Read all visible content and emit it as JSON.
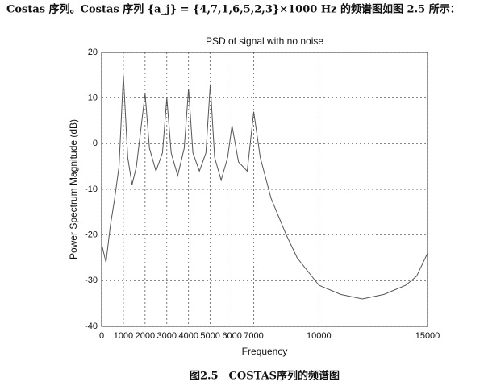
{
  "intro": "Costas 序列。Costas 序列 {a_j} = {4,7,1,6,5,2,3}×1000 Hz 的频谱图如图 2.5 所示：",
  "caption": "图2.5　COSTAS序列的频谱图",
  "chart_data": {
    "type": "line",
    "title": "PSD of signal with no noise",
    "x_label": "Frequency",
    "y_label": "Power Spectrum Magnitude (dB)",
    "x": [
      0,
      200,
      400,
      600,
      800,
      1000,
      1200,
      1400,
      1600,
      2000,
      2200,
      2500,
      2800,
      3000,
      3200,
      3500,
      3800,
      4000,
      4200,
      4500,
      4800,
      5000,
      5200,
      5500,
      5800,
      6000,
      6300,
      6700,
      7000,
      7300,
      7800,
      8500,
      9000,
      9500,
      10000,
      11000,
      12000,
      13000,
      14000,
      14500,
      15000
    ],
    "series": [
      {
        "name": "PSD",
        "color": "#555555",
        "values": [
          -22,
          -26,
          -18,
          -12,
          -5,
          15,
          -3,
          -9,
          -5,
          11,
          -1,
          -6,
          -2,
          10,
          -2,
          -7,
          -1,
          12,
          -2,
          -6,
          -2,
          13,
          -3,
          -8,
          -3,
          4,
          -4,
          -6,
          7,
          -3,
          -12,
          -20,
          -25,
          -28,
          -31,
          -33,
          -34,
          -33,
          -31,
          -29,
          -24
        ]
      }
    ],
    "xlim": [
      0,
      15000
    ],
    "xticks": [
      0,
      1000,
      2000,
      3000,
      4000,
      5000,
      6000,
      7000,
      10000,
      15000
    ],
    "ylim": [
      -40,
      20
    ],
    "yticks": [
      -40,
      -30,
      -20,
      -10,
      0,
      10,
      20
    ],
    "grid": true
  }
}
